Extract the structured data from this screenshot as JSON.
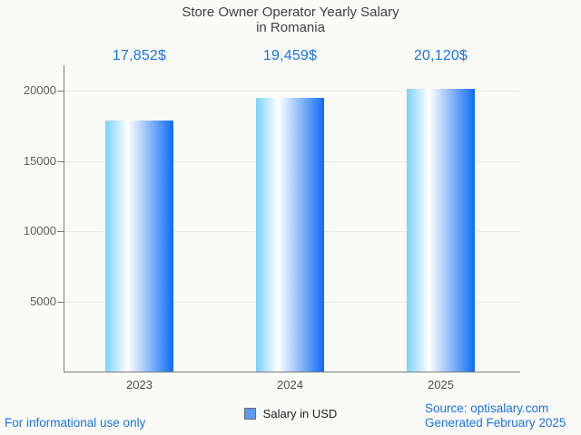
{
  "chart_data": {
    "type": "bar",
    "title": "Store Owner Operator Yearly Salary in Romania",
    "title_lines": [
      "Store Owner Operator Yearly Salary",
      "in Romania"
    ],
    "categories": [
      "2023",
      "2024",
      "2025"
    ],
    "series": [
      {
        "name": "Salary in USD",
        "values": [
          17852,
          19459,
          20120
        ]
      }
    ],
    "value_labels": [
      "17,852$",
      "19,459$",
      "20,120$"
    ],
    "xlabel": "",
    "ylabel": "",
    "ylim": [
      0,
      20000
    ],
    "yticks": [
      5000,
      10000,
      15000,
      20000
    ],
    "grid": true,
    "legend_position": "bottom"
  },
  "legend": {
    "label": "Salary in USD",
    "swatch_color": "#5b9bf3",
    "swatch_border_color": "#6e6e6e"
  },
  "footer": {
    "disclaimer": "For informational use only",
    "source_line1": "Source: optisalary.com",
    "source_line2": "Generated February 2025"
  },
  "colors": {
    "background": "#fafaf7",
    "accent_blue": "#1a73e8",
    "title_text": "#3f3f46",
    "axis_text": "#5c5c5c",
    "bar_gradient_left": "#7ad2fc",
    "bar_gradient_mid": "#ffffff",
    "bar_gradient_right": "#0e6cf4"
  }
}
